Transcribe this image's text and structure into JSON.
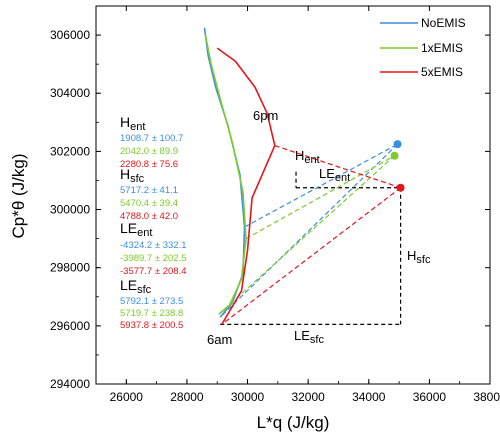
{
  "colors": {
    "NoEMIS": "#3d8fdc",
    "1xEMIS": "#7ccc2c",
    "5xEMIS": "#e5161b"
  },
  "chart_data": {
    "type": "line",
    "xlabel": "L*q (J/kg)",
    "ylabel": "Cp*θ (J/kg)",
    "xlim": [
      25000,
      38000
    ],
    "ylim": [
      294000,
      307000
    ],
    "xticks": [
      "26000",
      "28000",
      "30000",
      "32000",
      "34000",
      "36000",
      "38000"
    ],
    "yticks": [
      "294000",
      "296000",
      "298000",
      "300000",
      "302000",
      "304000",
      "306000"
    ],
    "legend_position": "top-right",
    "series": [
      {
        "name": "NoEMIS",
        "diurnal": [
          [
            28580,
            306250
          ],
          [
            28700,
            305300
          ],
          [
            28950,
            304200
          ],
          [
            29350,
            302900
          ],
          [
            29750,
            301200
          ],
          [
            29900,
            299400
          ],
          [
            29850,
            297800
          ],
          [
            29500,
            296800
          ],
          [
            29100,
            296300
          ]
        ],
        "start": [
          29100,
          296300
        ],
        "end": [
          34950,
          302250
        ]
      },
      {
        "name": "1xEMIS",
        "diurnal": [
          [
            28600,
            306050
          ],
          [
            28800,
            305000
          ],
          [
            29100,
            303800
          ],
          [
            29500,
            302300
          ],
          [
            29850,
            300600
          ],
          [
            29950,
            299000
          ],
          [
            29800,
            297600
          ],
          [
            29400,
            296700
          ],
          [
            29050,
            296400
          ]
        ],
        "start": [
          29050,
          296400
        ],
        "end": [
          34850,
          301850
        ]
      },
      {
        "name": "5xEMIS",
        "diurnal": [
          [
            29000,
            305550
          ],
          [
            29600,
            305100
          ],
          [
            30250,
            304200
          ],
          [
            30650,
            303300
          ],
          [
            30900,
            302200
          ],
          [
            30150,
            300400
          ],
          [
            30000,
            298600
          ],
          [
            29800,
            297200
          ],
          [
            29150,
            296050
          ]
        ],
        "start": [
          29150,
          296050
        ],
        "end": [
          35050,
          300750
        ]
      }
    ],
    "annotations": {
      "label_6pm": "6pm",
      "label_6am": "6am",
      "H_ent": {
        "main": "H",
        "sub": "ent"
      },
      "LE_ent": {
        "main": "LE",
        "sub": "ent"
      },
      "H_sfc": {
        "main": "H",
        "sub": "sfc"
      },
      "LE_sfc": {
        "main": "LE",
        "sub": "sfc"
      }
    },
    "box_6pm_corner": [
      31600,
      301300
    ],
    "box_6pm_bottom": 300750,
    "box_6am_corner": [
      29100,
      296050
    ],
    "box_right_x": 35050,
    "stats": [
      {
        "main": "H",
        "sub": "ent",
        "values": [
          "1908.7 ± 100.7",
          "2042.0 ± 89.9",
          "2280.8 ± 75.6"
        ]
      },
      {
        "main": "H",
        "sub": "sfc",
        "values": [
          "5717.2 ± 41.1",
          "5470.4 ± 39.4",
          "4788.0 ± 42.0"
        ]
      },
      {
        "main": "LE",
        "sub": "ent",
        "values": [
          "-4324.2 ± 332.1",
          "-3989.7 ± 202.5",
          "-3577.7 ± 208.4"
        ]
      },
      {
        "main": "LE",
        "sub": "sfc",
        "values": [
          "5792.1 ± 273.5",
          "5719.7 ± 238.8",
          "5937.8 ± 200.5"
        ]
      }
    ]
  }
}
